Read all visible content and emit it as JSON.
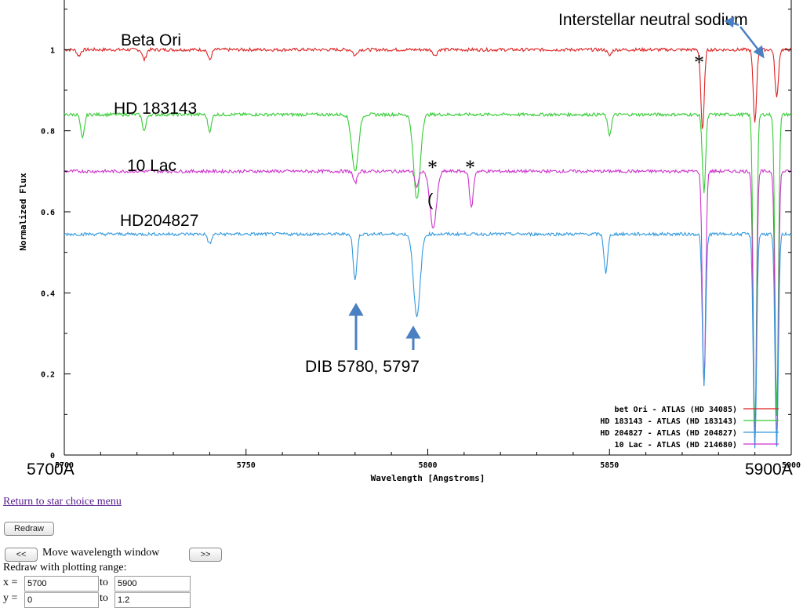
{
  "annotations": {
    "star_labels": [
      "Beta Ori",
      "HD 183143",
      "10 Lac",
      "HD204827"
    ],
    "interstellar_label": "Interstellar neutral sodium",
    "dib_label": "DIB 5780, 5797",
    "asterisk": "*",
    "paren": "(",
    "range_left": "5700A",
    "range_right": "5900A"
  },
  "controls": {
    "return_link": "Return to star choice menu",
    "redraw_label": "Redraw",
    "prev_label": "<<",
    "next_label": ">>",
    "move_text": "Move wavelength window",
    "range_text": "Redraw with plotting range:",
    "x_label": "x =",
    "y_label": "y =",
    "to_label": "to",
    "x_min": "5700",
    "x_max": "5900",
    "y_min": "0",
    "y_max": "1.2"
  },
  "chart_data": {
    "type": "line",
    "xlabel": "Wavelength [Angstroms]",
    "ylabel": "Normalized Flux",
    "xlim": [
      5700,
      5900
    ],
    "ylim": [
      0,
      1.2
    ],
    "x_ticks": [
      5700,
      5750,
      5800,
      5850,
      5900
    ],
    "x_tick_labels": [
      "5700",
      "5750",
      "5800",
      "5850",
      "5900"
    ],
    "y_ticks": [
      0,
      0.2,
      0.4,
      0.6,
      0.8,
      1
    ],
    "y_tick_labels": [
      "0",
      "0.2",
      "0.4",
      "0.6",
      "0.8",
      "1"
    ],
    "grid": false,
    "legend_position": "bottom-right",
    "colors": {
      "bet Ori - ATLAS (HD 34085)": "#dd2222",
      "HD 183143 - ATLAS (HD 183143)": "#33cc33",
      "HD 204827 - ATLAS (HD 204827)": "#3399dd",
      "10 Lac - ATLAS (HD 214680)": "#cc33cc",
      "annotation_arrow": "#4a7fc1"
    },
    "series": [
      {
        "name": "bet Ori - ATLAS (HD 34085)",
        "baseline": 1.0,
        "lines": [
          [
            5704,
            0.985
          ],
          [
            5722,
            0.975
          ],
          [
            5740,
            0.975
          ],
          [
            5780,
            0.985
          ],
          [
            5802,
            0.985
          ],
          [
            5850,
            0.985
          ],
          [
            5875.6,
            0.8
          ],
          [
            5890,
            0.82
          ],
          [
            5896,
            0.88
          ]
        ]
      },
      {
        "name": "HD 183143 - ATLAS (HD 183143)",
        "baseline": 0.84,
        "lines": [
          [
            5705,
            0.78
          ],
          [
            5722,
            0.8
          ],
          [
            5740,
            0.8
          ],
          [
            5780,
            0.7
          ],
          [
            5797,
            0.63
          ],
          [
            5850,
            0.79
          ],
          [
            5876,
            0.65
          ],
          [
            5890,
            0.05
          ],
          [
            5896,
            0.1
          ]
        ]
      },
      {
        "name": "10 Lac - ATLAS (HD 214680)",
        "baseline": 0.7,
        "lines": [
          [
            5780,
            0.67
          ],
          [
            5797,
            0.66
          ],
          [
            5801.5,
            0.56
          ],
          [
            5812,
            0.61
          ],
          [
            5876,
            0.17
          ],
          [
            5890,
            0.02
          ],
          [
            5896,
            0.02
          ]
        ]
      },
      {
        "name": "HD 204827 - ATLAS (HD 204827)",
        "baseline": 0.545,
        "lines": [
          [
            5740,
            0.52
          ],
          [
            5780,
            0.43
          ],
          [
            5797,
            0.34
          ],
          [
            5849,
            0.45
          ],
          [
            5876,
            0.17
          ],
          [
            5890,
            0.02
          ],
          [
            5896,
            0.02
          ]
        ]
      }
    ]
  }
}
